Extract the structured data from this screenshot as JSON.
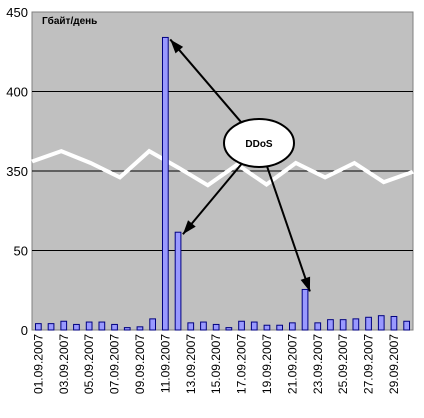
{
  "chart_data": {
    "type": "bar",
    "unit_label": "Гбайт/день",
    "y_ticks": [
      {
        "label": "0",
        "value": 0
      },
      {
        "label": "50",
        "value": 1
      },
      {
        "label": "350",
        "value": 2
      },
      {
        "label": "400",
        "value": 3
      },
      {
        "label": "450",
        "value": 4
      }
    ],
    "ylim": [
      0,
      4
    ],
    "grid": true,
    "categories": [
      "01.09.2007",
      "02.09.2007",
      "03.09.2007",
      "04.09.2007",
      "05.09.2007",
      "06.09.2007",
      "07.09.2007",
      "08.09.2007",
      "09.09.2007",
      "10.09.2007",
      "11.09.2007",
      "12.09.2007",
      "13.09.2007",
      "14.09.2007",
      "15.09.2007",
      "16.09.2007",
      "17.09.2007",
      "18.09.2007",
      "19.09.2007",
      "20.09.2007",
      "21.09.2007",
      "22.09.2007",
      "23.09.2007",
      "24.09.2007",
      "25.09.2007",
      "26.09.2007",
      "27.09.2007",
      "28.09.2007",
      "29.09.2007",
      "30.09.2007"
    ],
    "x_tick_labels": [
      "01.09.2007",
      "03.09.2007",
      "05.09.2007",
      "07.09.2007",
      "09.09.2007",
      "11.09.2007",
      "13.09.2007",
      "15.09.2007",
      "17.09.2007",
      "19.09.2007",
      "21.09.2007",
      "23.09.2007",
      "25.09.2007",
      "27.09.2007",
      "29.09.2007"
    ],
    "series": [
      {
        "values": [
          0.08,
          0.08,
          0.11,
          0.07,
          0.1,
          0.1,
          0.07,
          0.03,
          0.04,
          0.14,
          3.68,
          1.23,
          0.09,
          0.1,
          0.07,
          0.03,
          0.11,
          0.1,
          0.06,
          0.06,
          0.09,
          0.51,
          0.09,
          0.13,
          0.13,
          0.14,
          0.16,
          0.18,
          0.17,
          0.11
        ],
        "color": "#9999ff"
      }
    ],
    "break_line": {
      "color": "#ffffff",
      "values": [
        2.12,
        2.25,
        2.1,
        1.92,
        2.25,
        2.04,
        1.82,
        2.08,
        1.83,
        2.1,
        1.92,
        2.1,
        1.86,
        1.99
      ]
    },
    "annotation": {
      "text": "DDoS",
      "targets": [
        "11.09.2007",
        "12.09.2007",
        "22.09.2007"
      ]
    }
  }
}
